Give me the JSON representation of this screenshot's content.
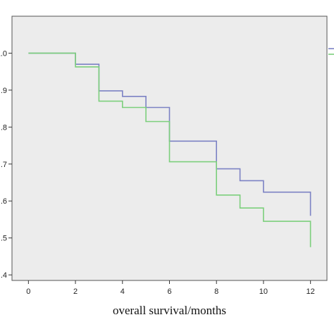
{
  "chart_data": {
    "type": "line",
    "step": true,
    "title": "",
    "xlabel": "overall survival/months",
    "ylabel": "",
    "xlim": [
      -0.7,
      12.7
    ],
    "ylim": [
      0.385,
      1.1
    ],
    "x_ticks": [
      0,
      2,
      4,
      6,
      8,
      10,
      12
    ],
    "y_ticks": [
      0.4,
      0.5,
      0.6,
      0.7,
      0.8,
      0.9,
      1.0
    ],
    "y_tick_labels": [
      ".4",
      ".5",
      ".6",
      ".7",
      ".8",
      ".9",
      "1.0"
    ],
    "grid": false,
    "legend": "right, partially cropped",
    "plot_background": "#ececec",
    "series": [
      {
        "color": "#7c82c4",
        "points": [
          [
            0,
            1.0
          ],
          [
            2,
            1.0
          ],
          [
            2,
            0.97
          ],
          [
            3,
            0.97
          ],
          [
            3,
            0.898
          ],
          [
            4,
            0.898
          ],
          [
            4,
            0.883
          ],
          [
            5,
            0.883
          ],
          [
            5,
            0.853
          ],
          [
            6,
            0.853
          ],
          [
            6,
            0.762
          ],
          [
            8,
            0.762
          ],
          [
            8,
            0.687
          ],
          [
            9,
            0.687
          ],
          [
            9,
            0.655
          ],
          [
            10,
            0.655
          ],
          [
            10,
            0.624
          ],
          [
            12,
            0.624
          ],
          [
            12,
            0.56
          ]
        ]
      },
      {
        "color": "#7ccf7c",
        "points": [
          [
            0,
            1.0
          ],
          [
            2,
            1.0
          ],
          [
            2,
            0.963
          ],
          [
            3,
            0.963
          ],
          [
            3,
            0.87
          ],
          [
            4,
            0.87
          ],
          [
            4,
            0.853
          ],
          [
            5,
            0.853
          ],
          [
            5,
            0.815
          ],
          [
            6,
            0.815
          ],
          [
            6,
            0.706
          ],
          [
            8,
            0.706
          ],
          [
            8,
            0.616
          ],
          [
            9,
            0.616
          ],
          [
            9,
            0.581
          ],
          [
            10,
            0.581
          ],
          [
            10,
            0.545
          ],
          [
            12,
            0.545
          ],
          [
            12,
            0.475
          ]
        ]
      }
    ]
  }
}
